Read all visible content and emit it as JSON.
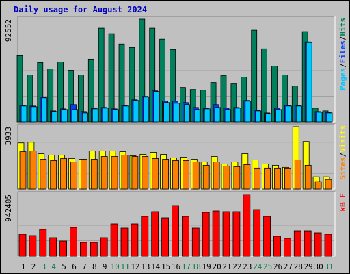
{
  "title": "Daily usage for August 2024",
  "legend_separator": "/",
  "categories": [
    "1",
    "2",
    "3",
    "4",
    "5",
    "6",
    "7",
    "8",
    "9",
    "10",
    "11",
    "12",
    "13",
    "14",
    "15",
    "16",
    "17",
    "18",
    "19",
    "20",
    "21",
    "22",
    "23",
    "24",
    "25",
    "26",
    "27",
    "28",
    "29",
    "30",
    "31"
  ],
  "category_colors": [
    "#000000",
    "#000000",
    "#008040",
    "#008040",
    "#000000",
    "#000000",
    "#000000",
    "#000000",
    "#000000",
    "#008040",
    "#008040",
    "#000000",
    "#000000",
    "#000000",
    "#000000",
    "#000000",
    "#008040",
    "#008040",
    "#000000",
    "#000000",
    "#000000",
    "#000000",
    "#000000",
    "#008040",
    "#008040",
    "#000000",
    "#000000",
    "#000000",
    "#000000",
    "#000000",
    "#008040"
  ],
  "chart_data": [
    {
      "type": "bar",
      "ylim": [
        0,
        92552
      ],
      "yticks": [
        92552
      ],
      "grid": true,
      "series": [
        {
          "name": "Hits",
          "color": "#00805c",
          "values": [
            59630,
            42240,
            53420,
            47830,
            54040,
            46590,
            42240,
            56530,
            84480,
            79510,
            70190,
            67090,
            92552,
            84480,
            74540,
            65220,
            31060,
            29190,
            28570,
            35410,
            41620,
            34790,
            40380,
            82620,
            65840,
            50310,
            42240,
            32300,
            81370,
            12420,
            9940
          ]
        },
        {
          "name": "Files",
          "color": "#0040ff",
          "values": [
            14910,
            14290,
            22360,
            9940,
            11800,
            15530,
            9320,
            12420,
            13040,
            11800,
            14910,
            19880,
            22980,
            27950,
            18640,
            18640,
            17390,
            13040,
            12420,
            15530,
            12420,
            13040,
            19260,
            10560,
            8080,
            12420,
            14910,
            14910,
            72060,
            9320,
            8700
          ]
        },
        {
          "name": "Pages",
          "color": "#00c8ff",
          "values": [
            14290,
            13670,
            21740,
            9320,
            11180,
            11180,
            8080,
            11800,
            12420,
            11180,
            14290,
            19260,
            22360,
            27330,
            17390,
            16770,
            15530,
            11180,
            11800,
            13040,
            11180,
            12420,
            18640,
            9940,
            7450,
            11180,
            14290,
            14290,
            71440,
            8700,
            8080
          ]
        }
      ]
    },
    {
      "type": "bar",
      "ylim": [
        0,
        3933
      ],
      "yticks": [
        3933
      ],
      "grid": true,
      "series": [
        {
          "name": "Visits",
          "color": "#ffff00",
          "values": [
            2907,
            2950,
            2223,
            2138,
            2138,
            1924,
            1881,
            2394,
            2394,
            2394,
            2351,
            2095,
            2180,
            2309,
            2180,
            1967,
            2009,
            1881,
            1710,
            2052,
            1582,
            1710,
            2223,
            1838,
            1582,
            1496,
            1368,
            3933,
            2993,
            770,
            770
          ]
        },
        {
          "name": "Sites",
          "color": "#ff8000",
          "values": [
            2351,
            2394,
            1881,
            1796,
            1924,
            1710,
            1881,
            1881,
            2052,
            2052,
            2138,
            2052,
            2052,
            1924,
            1881,
            1796,
            1796,
            1710,
            1496,
            1710,
            1454,
            1411,
            1539,
            1325,
            1325,
            1325,
            1325,
            1838,
            1496,
            470,
            599
          ]
        }
      ]
    },
    {
      "type": "bar",
      "ylim": [
        0,
        942405
      ],
      "yticks": [
        942405
      ],
      "grid": true,
      "series": [
        {
          "name": "kB F",
          "color": "#ff0000",
          "values": [
            335070,
            314130,
            408370,
            282720,
            230360,
            439780,
            209420,
            209420,
            282720,
            492140,
            429310,
            492140,
            607320,
            680620,
            586380,
            774850,
            607320,
            429310,
            670140,
            691090,
            680620,
            680620,
            942405,
            712030,
            607320,
            303660,
            272250,
            387430,
            387430,
            356010,
            335070
          ]
        }
      ]
    }
  ]
}
